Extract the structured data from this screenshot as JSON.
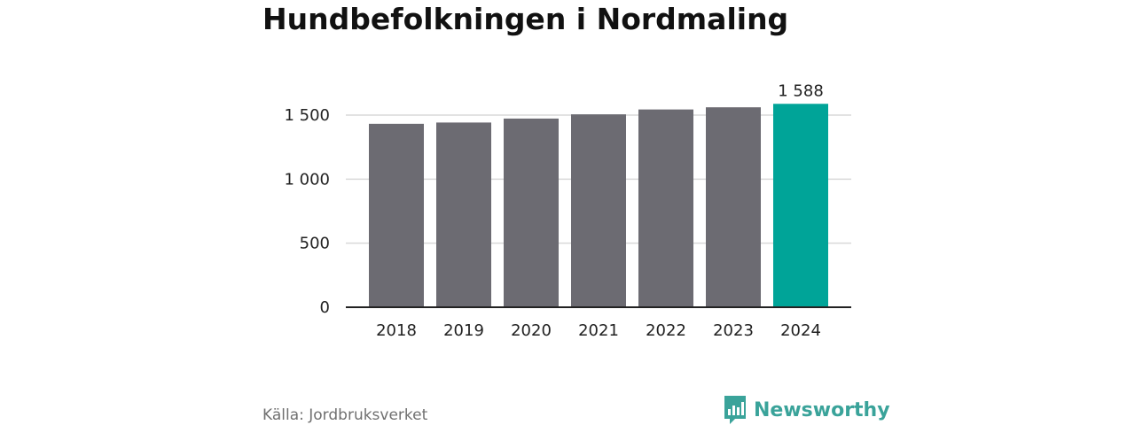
{
  "header": {
    "title": "Hundbefolkningen i Nordmaling"
  },
  "chart_data": {
    "type": "bar",
    "title": "Hundbefolkningen i Nordmaling",
    "xlabel": "",
    "ylabel": "",
    "categories": [
      "2018",
      "2019",
      "2020",
      "2021",
      "2022",
      "2023",
      "2024"
    ],
    "values": [
      1432,
      1442,
      1473,
      1506,
      1544,
      1561,
      1588
    ],
    "highlight_index": 6,
    "data_labels": [
      {
        "index": 6,
        "text": "1 588"
      }
    ],
    "ylim": [
      0,
      1500
    ],
    "yticks": [
      {
        "value": 0,
        "label": "0"
      },
      {
        "value": 500,
        "label": "500"
      },
      {
        "value": 1000,
        "label": "1 000"
      },
      {
        "value": 1500,
        "label": "1 500"
      }
    ],
    "grid": true,
    "colors": {
      "bar": "#6c6b72",
      "highlight": "#00a498",
      "grid": "#d9d9d9",
      "axis": "#222222",
      "text": "#222222"
    }
  },
  "footer": {
    "source": "Källa: Jordbruksverket",
    "brand": "Newsworthy"
  },
  "icons": {
    "brand_logo": "newsworthy-bar-chart-icon"
  }
}
